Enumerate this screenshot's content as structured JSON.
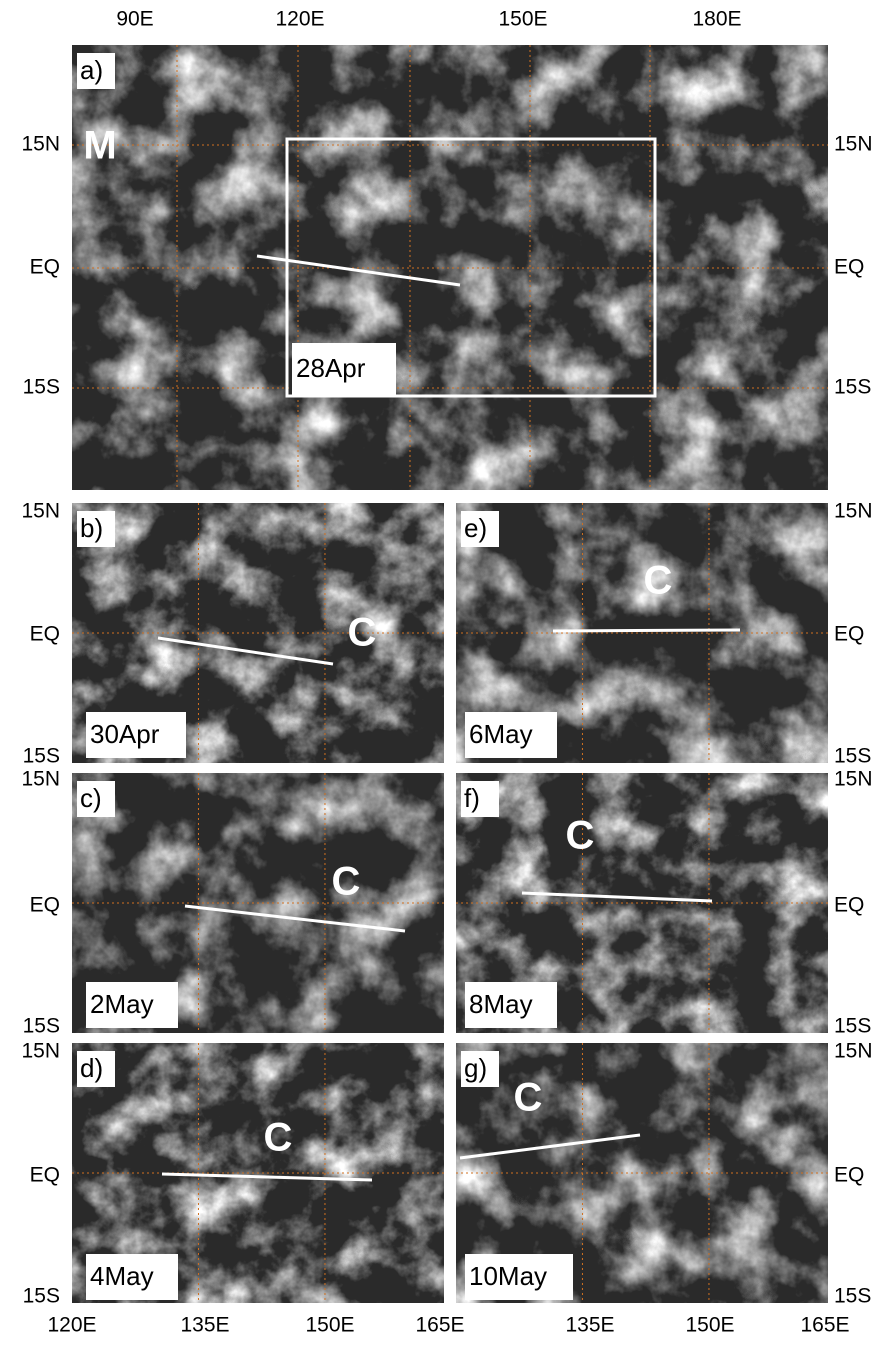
{
  "panels": [
    {
      "label": "a)",
      "date": "28Apr",
      "marker": "M"
    },
    {
      "label": "b)",
      "date": "30Apr",
      "marker": "C"
    },
    {
      "label": "c)",
      "date": "2May",
      "marker": "C"
    },
    {
      "label": "d)",
      "date": "4May",
      "marker": "C"
    },
    {
      "label": "e)",
      "date": "6May",
      "marker": "C"
    },
    {
      "label": "f)",
      "date": "8May",
      "marker": "C"
    },
    {
      "label": "g)",
      "date": "10May",
      "marker": "C"
    }
  ],
  "top_lon_labels": [
    "90E",
    "120E",
    "150E",
    "180E"
  ],
  "lat_labels": [
    "15N",
    "EQ",
    "15S"
  ],
  "bottom_lon_labels": [
    "120E",
    "135E",
    "150E",
    "165E",
    "135E",
    "150E",
    "165E"
  ]
}
